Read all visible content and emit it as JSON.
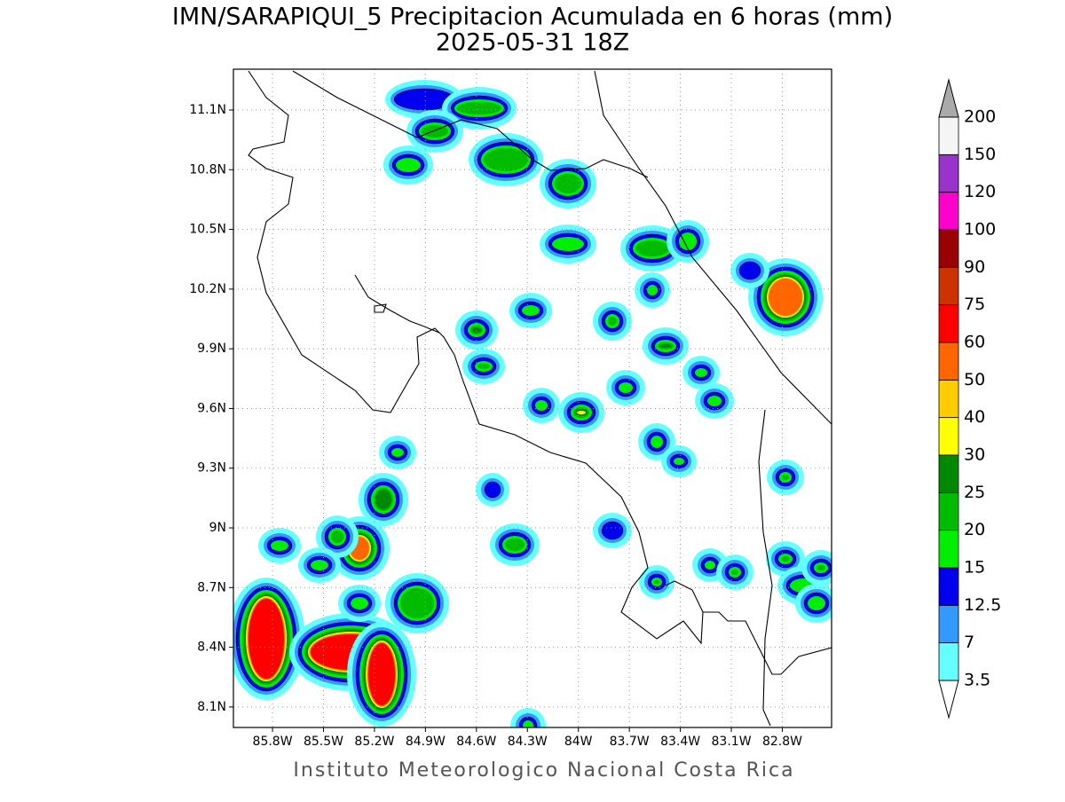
{
  "title": "IMN/SARAPIQUI_5 Precipitacion Acumulada en 6 horas (mm)",
  "subtitle": "2025-05-31 18Z",
  "footer": "Instituto Meteorologico Nacional Costa Rica",
  "map": {
    "xlim": [
      -86.03,
      -82.51
    ],
    "ylim": [
      7.997,
      11.305
    ],
    "grid": true,
    "xticks": [
      {
        "value": -85.8,
        "label": "85.8W"
      },
      {
        "value": -85.5,
        "label": "85.5W"
      },
      {
        "value": -85.2,
        "label": "85.2W"
      },
      {
        "value": -84.9,
        "label": "84.9W"
      },
      {
        "value": -84.6,
        "label": "84.6W"
      },
      {
        "value": -84.3,
        "label": "84.3W"
      },
      {
        "value": -84,
        "label": "84W"
      },
      {
        "value": -83.7,
        "label": "83.7W"
      },
      {
        "value": -83.4,
        "label": "83.4W"
      },
      {
        "value": -83.1,
        "label": "83.1W"
      },
      {
        "value": -82.8,
        "label": "82.8W"
      }
    ],
    "yticks": [
      {
        "value": 8.1,
        "label": "8.1N"
      },
      {
        "value": 8.4,
        "label": "8.4N"
      },
      {
        "value": 8.7,
        "label": "8.7N"
      },
      {
        "value": 9,
        "label": "9N"
      },
      {
        "value": 9.3,
        "label": "9.3N"
      },
      {
        "value": 9.6,
        "label": "9.6N"
      },
      {
        "value": 9.9,
        "label": "9.9N"
      },
      {
        "value": 10.2,
        "label": "10.2N"
      },
      {
        "value": 10.5,
        "label": "10.5N"
      },
      {
        "value": 10.8,
        "label": "10.8N"
      },
      {
        "value": 11.1,
        "label": "11.1N"
      }
    ]
  },
  "colorbar": {
    "levels": [
      3.5,
      7,
      12.5,
      15,
      20,
      25,
      30,
      40,
      50,
      60,
      75,
      90,
      100,
      120,
      150,
      200
    ],
    "colors": [
      "#ffffff",
      "#66ffff",
      "#3399ff",
      "#0000ee",
      "#00ee00",
      "#00bb00",
      "#008800",
      "#ffff00",
      "#ffcc00",
      "#ff6600",
      "#ff0000",
      "#cc3300",
      "#990000",
      "#ff00cc",
      "#9933cc",
      "#f5f5f5",
      "#aaaaaa"
    ]
  }
}
